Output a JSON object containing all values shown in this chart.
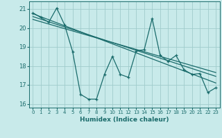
{
  "xlabel": "Humidex (Indice chaleur)",
  "bg_color": "#c8eaea",
  "grid_color": "#a0cccc",
  "line_color": "#1a6b6b",
  "xlim": [
    -0.5,
    23.5
  ],
  "ylim": [
    15.8,
    21.4
  ],
  "yticks": [
    16,
    17,
    18,
    19,
    20,
    21
  ],
  "xticks": [
    0,
    1,
    2,
    3,
    4,
    5,
    6,
    7,
    8,
    9,
    10,
    11,
    12,
    13,
    14,
    15,
    16,
    17,
    18,
    19,
    20,
    21,
    22,
    23
  ],
  "series1_x": [
    0,
    1,
    2,
    3,
    4,
    5,
    6,
    7,
    8,
    9,
    10,
    11,
    12,
    13,
    14,
    15,
    16,
    17,
    18,
    19,
    20,
    21,
    22,
    23
  ],
  "series1_y": [
    20.8,
    20.55,
    20.3,
    21.05,
    20.15,
    18.75,
    16.5,
    16.25,
    16.25,
    17.55,
    18.5,
    17.55,
    17.4,
    18.8,
    18.85,
    20.5,
    18.55,
    18.25,
    18.55,
    17.8,
    17.55,
    17.6,
    16.6,
    16.85
  ],
  "trend1_x": [
    0,
    23
  ],
  "trend1_y": [
    20.75,
    17.1
  ],
  "trend2_x": [
    0,
    23
  ],
  "trend2_y": [
    20.6,
    17.45
  ],
  "trend3_x": [
    0,
    23
  ],
  "trend3_y": [
    20.45,
    17.65
  ]
}
